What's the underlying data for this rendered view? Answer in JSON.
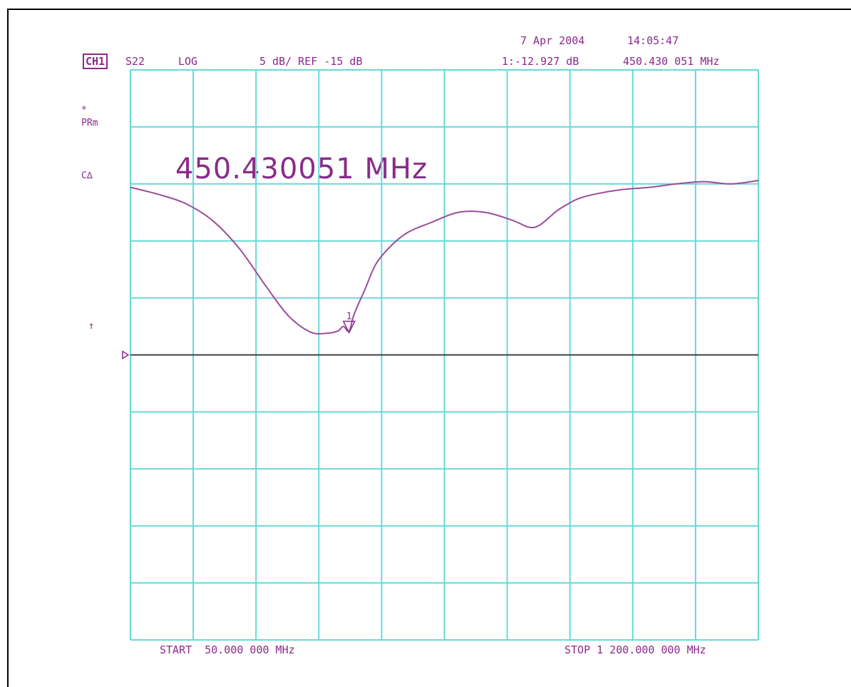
{
  "header": {
    "date": "7 Apr 2004",
    "time": "14:05:47",
    "channel": "CH1",
    "parameter": "S22",
    "format": "LOG",
    "scale": "5 dB/ REF -15 dB",
    "marker_readout": "1:-12.927 dB",
    "marker_freq": "450.430 051 MHz"
  },
  "side_labels": {
    "star": "*",
    "prm": "PRm",
    "cdelta": "C∆",
    "arrow": "↑"
  },
  "marker_big_text": "450.430051 MHz",
  "footer": {
    "start": "START  50.000 000 MHz",
    "stop": "STOP 1 200.000 000 MHz"
  },
  "colors": {
    "grid": "#66d9d9",
    "trace": "#9b4d9b",
    "text": "#8a2b8a",
    "reference_line": "#404040"
  },
  "chart_data": {
    "type": "line",
    "xlabel": "",
    "ylabel": "",
    "x_unit": "MHz",
    "y_unit": "dB",
    "xlim": [
      50,
      1200
    ],
    "ylim": [
      -40,
      10
    ],
    "grid": true,
    "reference_level_db": -15,
    "scale_db_per_div": 5,
    "series": [
      {
        "x": [
          50,
          100,
          150,
          200,
          250,
          300,
          340,
          380,
          410,
          430,
          440,
          450.43,
          460,
          480,
          500,
          530,
          560,
          600,
          650,
          700,
          750,
          780,
          800,
          830,
          850,
          870,
          900,
          950,
          1000,
          1050,
          1100,
          1150,
          1200
        ],
        "y": [
          -0.3,
          -0.9,
          -1.7,
          -3.2,
          -5.7,
          -9.1,
          -11.6,
          -13.0,
          -13.1,
          -12.9,
          -12.5,
          -12.9,
          -11.4,
          -9.2,
          -7.0,
          -5.3,
          -4.2,
          -3.4,
          -2.5,
          -2.5,
          -3.2,
          -3.8,
          -3.6,
          -2.4,
          -1.8,
          -1.3,
          -0.9,
          -0.5,
          -0.3,
          0.0,
          0.2,
          0.0,
          0.3
        ]
      }
    ],
    "markers": [
      {
        "label": "1",
        "x": 450.43,
        "y": -12.927
      }
    ]
  }
}
